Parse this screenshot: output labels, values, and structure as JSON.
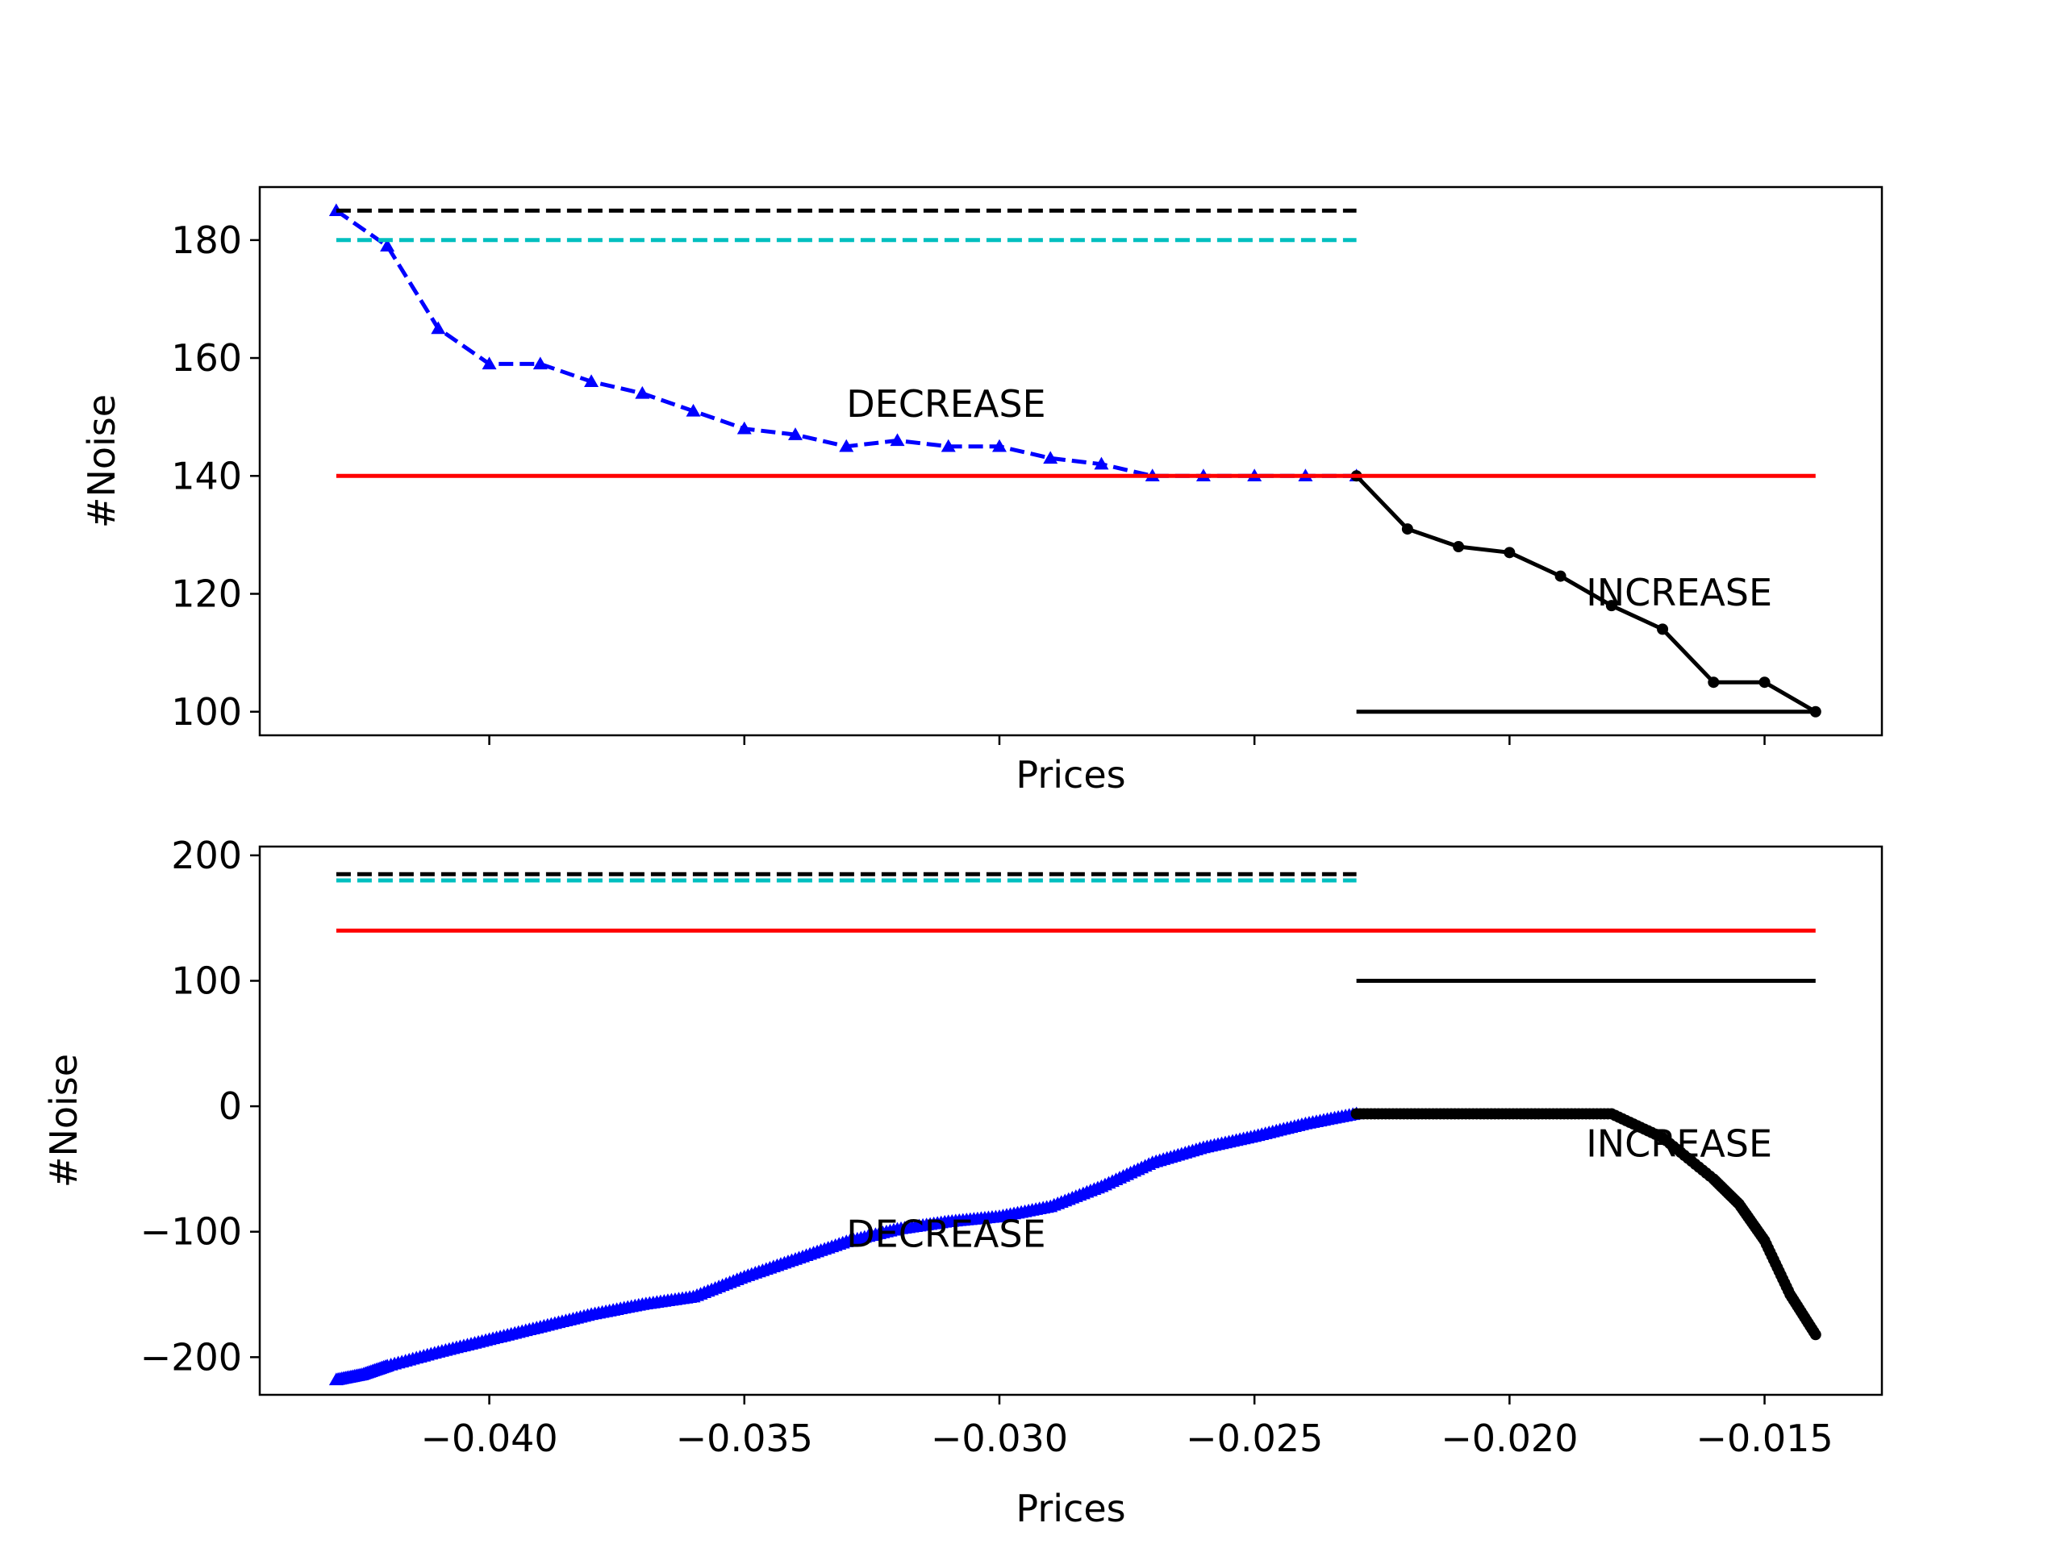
{
  "chart_data": [
    {
      "type": "line",
      "xlabel": "Prices",
      "ylabel": "#Noise",
      "xlim": [
        -0.0445,
        -0.0127
      ],
      "ylim": [
        96,
        189
      ],
      "y_ticks": [
        100,
        120,
        140,
        160,
        180
      ],
      "x_ticks": [
        -0.04,
        -0.035,
        -0.03,
        -0.025,
        -0.02,
        -0.015
      ],
      "x_ticklabels_visible": false,
      "grid": false,
      "annotations": [
        {
          "text": "DECREASE",
          "x": -0.033,
          "y": 150
        },
        {
          "text": "INCREASE",
          "x": -0.0185,
          "y": 118
        }
      ],
      "series": [
        {
          "x": [
            -0.043,
            -0.042,
            -0.041,
            -0.04,
            -0.039,
            -0.038,
            -0.037,
            -0.036,
            -0.035,
            -0.034,
            -0.033,
            -0.032,
            -0.031,
            -0.03,
            -0.029,
            -0.028,
            -0.027,
            -0.026,
            -0.025,
            -0.024,
            -0.023
          ],
          "values": [
            185,
            179,
            165,
            159,
            159,
            156,
            154,
            151,
            148,
            147,
            145,
            146,
            145,
            145,
            143,
            142,
            140,
            140,
            140,
            140,
            140
          ],
          "color": "#0000ff",
          "style": "dashed",
          "marker": "triangle"
        },
        {
          "x": [
            -0.023,
            -0.022,
            -0.021,
            -0.02,
            -0.019,
            -0.018,
            -0.017,
            -0.016,
            -0.015,
            -0.014
          ],
          "values": [
            140,
            131,
            128,
            127,
            123,
            118,
            114,
            105,
            105,
            100
          ],
          "color": "#000000",
          "style": "solid",
          "marker": "dot"
        },
        {
          "x": [
            -0.043,
            -0.023
          ],
          "values": [
            185,
            185
          ],
          "color": "#000000",
          "style": "dashed"
        },
        {
          "x": [
            -0.043,
            -0.023
          ],
          "values": [
            180,
            180
          ],
          "color": "#00bfbf",
          "style": "dashed"
        },
        {
          "x": [
            -0.043,
            -0.014
          ],
          "values": [
            140,
            140
          ],
          "color": "#ff0000",
          "style": "solid"
        },
        {
          "x": [
            -0.023,
            -0.014
          ],
          "values": [
            100,
            100
          ],
          "color": "#000000",
          "style": "solid"
        }
      ]
    },
    {
      "type": "line",
      "xlabel": "Prices",
      "ylabel": "#Noise",
      "xlim": [
        -0.0445,
        -0.0127
      ],
      "ylim": [
        -230,
        207
      ],
      "y_ticks": [
        -200,
        -100,
        0,
        100,
        200
      ],
      "x_ticks": [
        -0.04,
        -0.035,
        -0.03,
        -0.025,
        -0.02,
        -0.015
      ],
      "x_ticklabels": [
        "−0.040",
        "−0.035",
        "−0.030",
        "−0.025",
        "−0.020",
        "−0.015"
      ],
      "grid": false,
      "annotations": [
        {
          "text": "DECREASE",
          "x": -0.033,
          "y": -112
        },
        {
          "text": "INCREASE",
          "x": -0.0185,
          "y": -40
        }
      ],
      "series": [
        {
          "x": [
            -0.043,
            -0.0425,
            -0.042,
            -0.041,
            -0.04,
            -0.039,
            -0.038,
            -0.037,
            -0.036,
            -0.035,
            -0.034,
            -0.033,
            -0.032,
            -0.031,
            -0.03,
            -0.029,
            -0.028,
            -0.027,
            -0.026,
            -0.025,
            -0.024,
            -0.023
          ],
          "values": [
            -218,
            -214,
            -207,
            -196,
            -186,
            -176,
            -166,
            -158,
            -152,
            -136,
            -122,
            -108,
            -98,
            -92,
            -88,
            -80,
            -64,
            -45,
            -33,
            -24,
            -14,
            -6
          ],
          "color": "#0000ff",
          "style": "solid",
          "marker": "triangle",
          "dense": true
        },
        {
          "x": [
            -0.023,
            -0.022,
            -0.021,
            -0.02,
            -0.019,
            -0.018,
            -0.017,
            -0.016,
            -0.0155,
            -0.015,
            -0.0145,
            -0.014
          ],
          "values": [
            -6,
            -6,
            -6,
            -6,
            -6,
            -6,
            -25,
            -58,
            -78,
            -107,
            -150,
            -182
          ],
          "color": "#000000",
          "style": "solid",
          "marker": "dot",
          "dense": true
        },
        {
          "x": [
            -0.043,
            -0.023
          ],
          "values": [
            185,
            185
          ],
          "color": "#000000",
          "style": "dashed"
        },
        {
          "x": [
            -0.043,
            -0.023
          ],
          "values": [
            180,
            180
          ],
          "color": "#00bfbf",
          "style": "dashed"
        },
        {
          "x": [
            -0.043,
            -0.014
          ],
          "values": [
            140,
            140
          ],
          "color": "#ff0000",
          "style": "solid"
        },
        {
          "x": [
            -0.023,
            -0.014
          ],
          "values": [
            100,
            100
          ],
          "color": "#000000",
          "style": "solid"
        }
      ]
    }
  ]
}
